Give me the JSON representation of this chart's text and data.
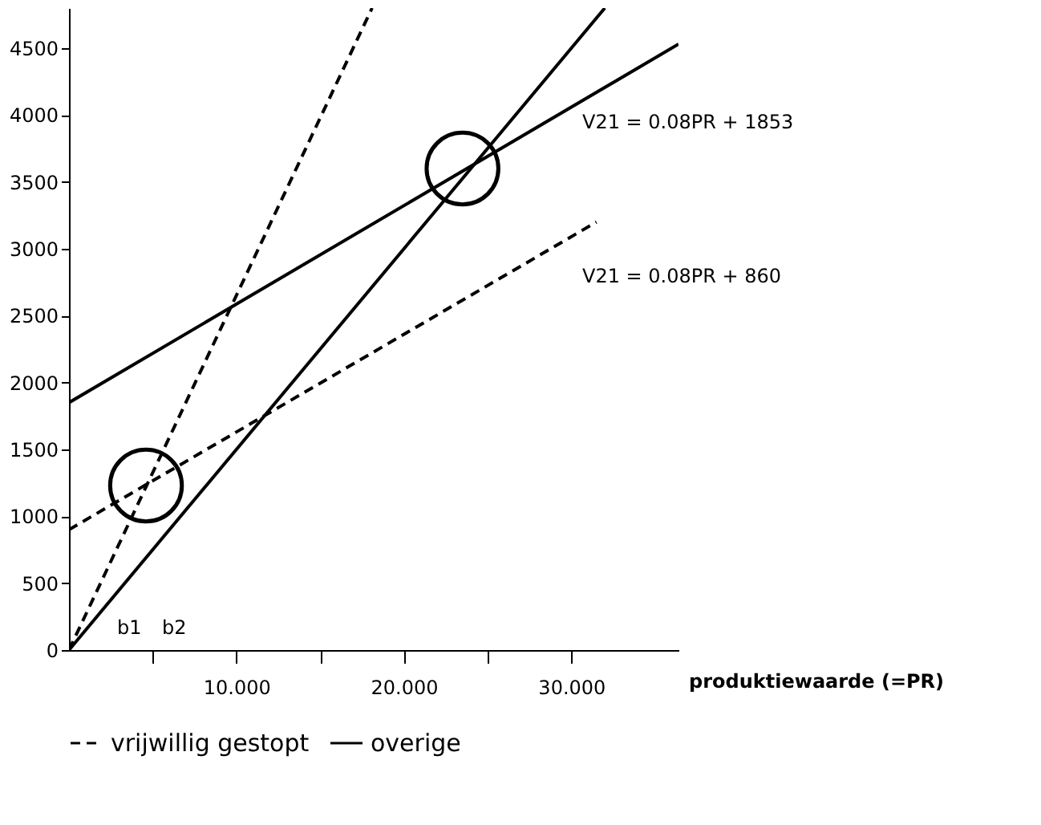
{
  "chart_data": {
    "type": "line",
    "xlabel": "produktiewaarde (=PR)",
    "xlim": [
      0,
      36.4
    ],
    "ylim": [
      0,
      4800
    ],
    "xticks": [
      {
        "value": 5,
        "label": null
      },
      {
        "value": 10,
        "label": "10.000"
      },
      {
        "value": 15,
        "label": null
      },
      {
        "value": 20,
        "label": "20.000"
      },
      {
        "value": 25,
        "label": null
      },
      {
        "value": 30,
        "label": "30.000"
      }
    ],
    "yticks": [
      0,
      500,
      1000,
      1500,
      2000,
      2500,
      3000,
      3500,
      4000,
      4500
    ],
    "grid": false,
    "legend": "bottom",
    "series": [
      {
        "name": "vrijwillig gestopt",
        "color": "#000000",
        "line_style": "dashed",
        "x": [
          0,
          31.5
        ],
        "values": [
          900,
          3200
        ]
      },
      {
        "color": "#000000",
        "line_style": "dashed",
        "x": [
          0,
          18.1
        ],
        "values": [
          0,
          4800
        ]
      },
      {
        "name": "overige",
        "color": "#000000",
        "line_style": "solid",
        "x": [
          0,
          36.4
        ],
        "values": [
          1850,
          4530
        ]
      },
      {
        "color": "#000000",
        "line_style": "solid",
        "x": [
          0,
          32
        ],
        "values": [
          0,
          4800
        ]
      },
      {
        "type": "scatter",
        "marker": "circle",
        "color": "#000000",
        "x": [
          4.6,
          23.5
        ],
        "values": [
          1230,
          3600
        ]
      }
    ],
    "annotations": [
      "V21 = 0.08PR + 1853",
      "V21 = 0.08PR + 860",
      "b1",
      "b2"
    ]
  }
}
